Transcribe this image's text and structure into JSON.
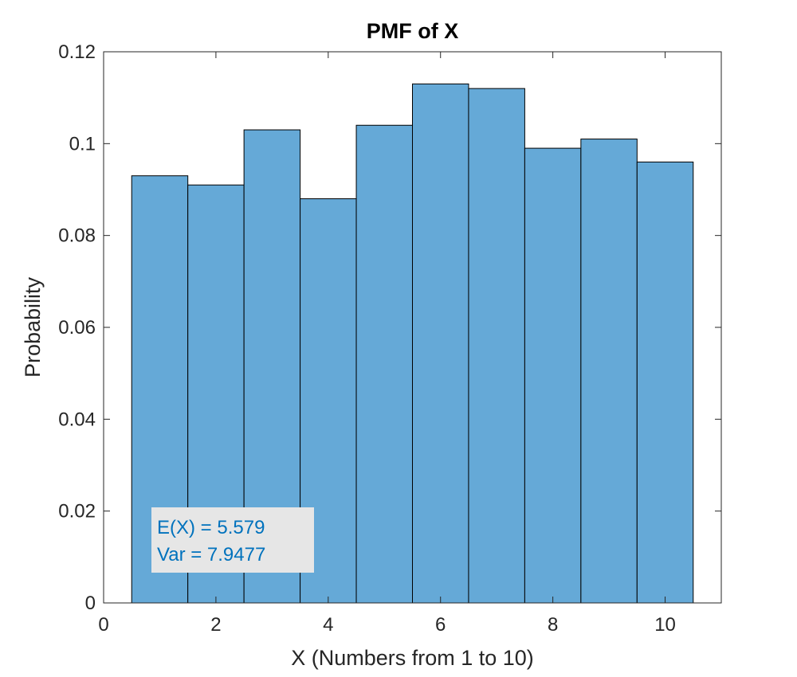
{
  "chart_data": {
    "type": "bar",
    "title": "PMF of X",
    "xlabel": "X (Numbers from 1 to 10)",
    "ylabel": "Probability",
    "categories": [
      1,
      2,
      3,
      4,
      5,
      6,
      7,
      8,
      9,
      10
    ],
    "values": [
      0.093,
      0.091,
      0.103,
      0.088,
      0.104,
      0.113,
      0.112,
      0.099,
      0.101,
      0.096
    ],
    "xlim": [
      0,
      11
    ],
    "ylim": [
      0,
      0.12
    ],
    "xticks": [
      0,
      2,
      4,
      6,
      8,
      10
    ],
    "xtick_labels": [
      "0",
      "2",
      "4",
      "6",
      "8",
      "10"
    ],
    "yticks": [
      0,
      0.02,
      0.04,
      0.06,
      0.08,
      0.1,
      0.12
    ],
    "ytick_labels": [
      "0",
      "0.02",
      "0.04",
      "0.06",
      "0.08",
      "0.1",
      "0.12"
    ],
    "bar_color": "#65a9d7",
    "grid": false,
    "annotation": {
      "lines": [
        "E(X) = 5.579",
        "Var = 7.9477"
      ],
      "text_color": "#0072bd",
      "background": "#e6e6e6"
    }
  }
}
